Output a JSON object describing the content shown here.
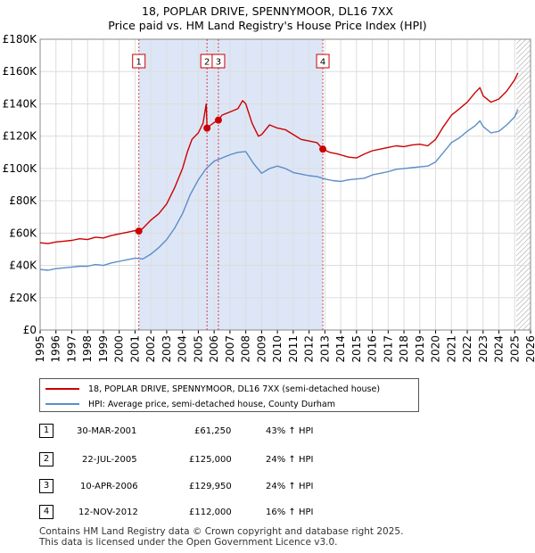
{
  "title_line1": "18, POPLAR DRIVE, SPENNYMOOR, DL16 7XX",
  "title_line2": "Price paid vs. HM Land Registry's House Price Index (HPI)",
  "colors": {
    "property": "#cc0000",
    "hpi": "#5b8dc9",
    "shade": "#dde6f6",
    "grid": "#dddddd"
  },
  "chart_data": {
    "type": "line",
    "xlim": [
      1995,
      2026
    ],
    "ylim": [
      0,
      180000
    ],
    "yticks": [
      0,
      20000,
      40000,
      60000,
      80000,
      100000,
      120000,
      140000,
      160000,
      180000
    ],
    "ytick_labels": [
      "£0",
      "£20K",
      "£40K",
      "£60K",
      "£80K",
      "£100K",
      "£120K",
      "£140K",
      "£160K",
      "£180K"
    ],
    "xticks": [
      1995,
      1996,
      1997,
      1998,
      1999,
      2000,
      2001,
      2002,
      2003,
      2004,
      2005,
      2006,
      2007,
      2008,
      2009,
      2010,
      2011,
      2012,
      2013,
      2014,
      2015,
      2016,
      2017,
      2018,
      2019,
      2020,
      2021,
      2022,
      2023,
      2024,
      2025,
      2026
    ],
    "xtick_labels": [
      "1995",
      "1996",
      "1997",
      "1998",
      "1999",
      "2000",
      "2001",
      "2002",
      "2003",
      "2004",
      "2005",
      "2006",
      "2007",
      "2008",
      "2009",
      "2010",
      "2011",
      "2012",
      "2013",
      "2014",
      "2015",
      "2016",
      "2017",
      "2018",
      "2019",
      "2020",
      "2021",
      "2022",
      "2023",
      "2024",
      "2025",
      "2026"
    ],
    "shaded_span": [
      2001.24,
      2012.87
    ],
    "hatched_from": 2025.1,
    "series": [
      {
        "name": "18, POPLAR DRIVE, SPENNYMOOR, DL16 7XX (semi-detached house)",
        "points": [
          [
            1995.0,
            54000
          ],
          [
            1995.5,
            53500
          ],
          [
            1996.0,
            54500
          ],
          [
            1996.5,
            55000
          ],
          [
            1997.0,
            55500
          ],
          [
            1997.5,
            56500
          ],
          [
            1998.0,
            56000
          ],
          [
            1998.5,
            57500
          ],
          [
            1999.0,
            57000
          ],
          [
            1999.5,
            58500
          ],
          [
            2000.0,
            59500
          ],
          [
            2000.5,
            60500
          ],
          [
            2001.0,
            61500
          ],
          [
            2001.24,
            61250
          ],
          [
            2001.5,
            63000
          ],
          [
            2002.0,
            68000
          ],
          [
            2002.5,
            72000
          ],
          [
            2003.0,
            78000
          ],
          [
            2003.5,
            88000
          ],
          [
            2004.0,
            100000
          ],
          [
            2004.3,
            110000
          ],
          [
            2004.6,
            118000
          ],
          [
            2005.0,
            122000
          ],
          [
            2005.3,
            128000
          ],
          [
            2005.5,
            140000
          ],
          [
            2005.55,
            125000
          ],
          [
            2005.8,
            127000
          ],
          [
            2006.0,
            128500
          ],
          [
            2006.27,
            129950
          ],
          [
            2006.5,
            133000
          ],
          [
            2007.0,
            135000
          ],
          [
            2007.5,
            137000
          ],
          [
            2007.8,
            142000
          ],
          [
            2008.0,
            140000
          ],
          [
            2008.4,
            128000
          ],
          [
            2008.8,
            120000
          ],
          [
            2009.0,
            121000
          ],
          [
            2009.5,
            127000
          ],
          [
            2010.0,
            125000
          ],
          [
            2010.5,
            124000
          ],
          [
            2011.0,
            121000
          ],
          [
            2011.5,
            118000
          ],
          [
            2012.0,
            117000
          ],
          [
            2012.5,
            116000
          ],
          [
            2012.87,
            112000
          ],
          [
            2013.3,
            110000
          ],
          [
            2013.8,
            109000
          ],
          [
            2014.5,
            107000
          ],
          [
            2015.0,
            106500
          ],
          [
            2015.5,
            109000
          ],
          [
            2016.0,
            111000
          ],
          [
            2016.5,
            112000
          ],
          [
            2017.0,
            113000
          ],
          [
            2017.5,
            114000
          ],
          [
            2018.0,
            113500
          ],
          [
            2018.5,
            114500
          ],
          [
            2019.0,
            115000
          ],
          [
            2019.5,
            114000
          ],
          [
            2020.0,
            118000
          ],
          [
            2020.5,
            126000
          ],
          [
            2021.0,
            133000
          ],
          [
            2021.5,
            137000
          ],
          [
            2022.0,
            141000
          ],
          [
            2022.5,
            147000
          ],
          [
            2022.8,
            150000
          ],
          [
            2023.0,
            145000
          ],
          [
            2023.5,
            141000
          ],
          [
            2024.0,
            143000
          ],
          [
            2024.5,
            148000
          ],
          [
            2025.0,
            155000
          ],
          [
            2025.2,
            159000
          ]
        ]
      },
      {
        "name": "HPI: Average price, semi-detached house, County Durham",
        "points": [
          [
            1995.0,
            37500
          ],
          [
            1995.5,
            37000
          ],
          [
            1996.0,
            38000
          ],
          [
            1996.5,
            38500
          ],
          [
            1997.0,
            39000
          ],
          [
            1997.5,
            39500
          ],
          [
            1998.0,
            39500
          ],
          [
            1998.5,
            40500
          ],
          [
            1999.0,
            40000
          ],
          [
            1999.5,
            41500
          ],
          [
            2000.0,
            42500
          ],
          [
            2000.5,
            43500
          ],
          [
            2001.0,
            44500
          ],
          [
            2001.5,
            44000
          ],
          [
            2002.0,
            47000
          ],
          [
            2002.5,
            51000
          ],
          [
            2003.0,
            56000
          ],
          [
            2003.5,
            63000
          ],
          [
            2004.0,
            72000
          ],
          [
            2004.5,
            84000
          ],
          [
            2005.0,
            93000
          ],
          [
            2005.5,
            100000
          ],
          [
            2006.0,
            104500
          ],
          [
            2006.5,
            106500
          ],
          [
            2007.0,
            108500
          ],
          [
            2007.5,
            110000
          ],
          [
            2008.0,
            110500
          ],
          [
            2008.5,
            103000
          ],
          [
            2009.0,
            97000
          ],
          [
            2009.5,
            100000
          ],
          [
            2010.0,
            101500
          ],
          [
            2010.5,
            100000
          ],
          [
            2011.0,
            97500
          ],
          [
            2011.5,
            96500
          ],
          [
            2012.0,
            95500
          ],
          [
            2012.5,
            95000
          ],
          [
            2013.0,
            93500
          ],
          [
            2013.5,
            92500
          ],
          [
            2014.0,
            92000
          ],
          [
            2014.5,
            93000
          ],
          [
            2015.0,
            93500
          ],
          [
            2015.5,
            94000
          ],
          [
            2016.0,
            96000
          ],
          [
            2016.5,
            97000
          ],
          [
            2017.0,
            98000
          ],
          [
            2017.5,
            99500
          ],
          [
            2018.0,
            100000
          ],
          [
            2018.5,
            100500
          ],
          [
            2019.0,
            101000
          ],
          [
            2019.5,
            101500
          ],
          [
            2020.0,
            104000
          ],
          [
            2020.5,
            110000
          ],
          [
            2021.0,
            116000
          ],
          [
            2021.5,
            119000
          ],
          [
            2022.0,
            123000
          ],
          [
            2022.5,
            126500
          ],
          [
            2022.8,
            129500
          ],
          [
            2023.0,
            126000
          ],
          [
            2023.5,
            122000
          ],
          [
            2024.0,
            123000
          ],
          [
            2024.5,
            127000
          ],
          [
            2025.0,
            132000
          ],
          [
            2025.2,
            136500
          ]
        ]
      }
    ],
    "sales": [
      {
        "id": "1",
        "x": 2001.24,
        "y": 61250
      },
      {
        "id": "2",
        "x": 2005.55,
        "y": 125000
      },
      {
        "id": "3",
        "x": 2006.27,
        "y": 129950
      },
      {
        "id": "4",
        "x": 2012.87,
        "y": 112000
      }
    ]
  },
  "legend": {
    "property_label": "18, POPLAR DRIVE, SPENNYMOOR, DL16 7XX (semi-detached house)",
    "hpi_label": "HPI: Average price, semi-detached house, County Durham"
  },
  "transactions": [
    {
      "num": "1",
      "date": "30-MAR-2001",
      "price": "£61,250",
      "hpi": "43% ↑ HPI"
    },
    {
      "num": "2",
      "date": "22-JUL-2005",
      "price": "£125,000",
      "hpi": "24% ↑ HPI"
    },
    {
      "num": "3",
      "date": "10-APR-2006",
      "price": "£129,950",
      "hpi": "24% ↑ HPI"
    },
    {
      "num": "4",
      "date": "12-NOV-2012",
      "price": "£112,000",
      "hpi": "16% ↑ HPI"
    }
  ],
  "footer": {
    "line1": "Contains HM Land Registry data © Crown copyright and database right 2025.",
    "line2": "This data is licensed under the Open Government Licence v3.0."
  }
}
